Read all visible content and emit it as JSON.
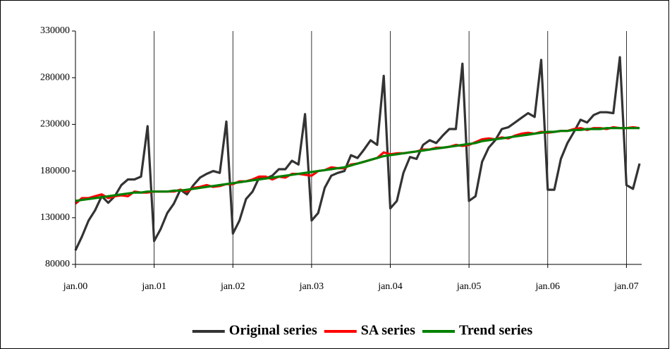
{
  "chart_data": {
    "type": "line",
    "categories": [
      "jan.00",
      null,
      null,
      null,
      null,
      null,
      null,
      null,
      null,
      null,
      null,
      null,
      "jan.01",
      null,
      null,
      null,
      null,
      null,
      null,
      null,
      null,
      null,
      null,
      null,
      "jan.02",
      null,
      null,
      null,
      null,
      null,
      null,
      null,
      null,
      null,
      null,
      null,
      "jan.03",
      null,
      null,
      null,
      null,
      null,
      null,
      null,
      null,
      null,
      null,
      null,
      "jan.04",
      null,
      null,
      null,
      null,
      null,
      null,
      null,
      null,
      null,
      null,
      null,
      "jan.05",
      null,
      null,
      null,
      null,
      null,
      null,
      null,
      null,
      null,
      null,
      null,
      "jan.06",
      null,
      null,
      null,
      null,
      null,
      null,
      null,
      null,
      null,
      null,
      null,
      "jan.07",
      null,
      null
    ],
    "series": [
      {
        "name": "Original series",
        "color": "#333333",
        "values": [
          95000,
          110000,
          127000,
          138000,
          153000,
          146000,
          153000,
          165000,
          171000,
          171000,
          174000,
          228000,
          105000,
          118000,
          135000,
          145000,
          160000,
          155000,
          165000,
          173000,
          177000,
          180000,
          178000,
          233000,
          113000,
          127000,
          150000,
          158000,
          173000,
          172000,
          175000,
          182000,
          182000,
          191000,
          187000,
          241000,
          127000,
          135000,
          162000,
          175000,
          178000,
          180000,
          197000,
          194000,
          203000,
          213000,
          208000,
          282000,
          140000,
          148000,
          178000,
          195000,
          193000,
          208000,
          213000,
          210000,
          218000,
          225000,
          225000,
          295000,
          148000,
          153000,
          190000,
          205000,
          213000,
          225000,
          227000,
          232000,
          237000,
          242000,
          238000,
          299000,
          160000,
          160000,
          193000,
          210000,
          222000,
          235000,
          232000,
          240000,
          243000,
          243000,
          242000,
          302000,
          165000,
          161000,
          188000
        ]
      },
      {
        "name": "SA series",
        "color": "#ff0000",
        "values": [
          145000,
          151000,
          151000,
          153000,
          155000,
          151000,
          153000,
          154000,
          153000,
          158000,
          157000,
          157000,
          158000,
          158000,
          158000,
          158000,
          160000,
          158000,
          162000,
          163000,
          165000,
          163000,
          164000,
          166000,
          166000,
          169000,
          169000,
          171000,
          174000,
          174000,
          171000,
          174000,
          173000,
          177000,
          177000,
          176000,
          175000,
          180000,
          181000,
          184000,
          183000,
          183000,
          187000,
          188000,
          190000,
          192000,
          194000,
          200000,
          198000,
          199000,
          199000,
          200000,
          201000,
          203000,
          203000,
          205000,
          205000,
          206000,
          208000,
          207000,
          208000,
          211000,
          214000,
          215000,
          214000,
          216000,
          215000,
          218000,
          220000,
          221000,
          220000,
          222000,
          221000,
          222000,
          223000,
          223000,
          225000,
          226000,
          224000,
          226000,
          226000,
          225000,
          227000,
          226000,
          226000,
          227000,
          226000
        ]
      },
      {
        "name": "Trend series",
        "color": "#008000",
        "values": [
          148000,
          149000,
          150000,
          151000,
          152000,
          153000,
          154000,
          155000,
          156000,
          157000,
          157000,
          158000,
          158000,
          158000,
          158000,
          159000,
          159000,
          160000,
          161000,
          162000,
          163000,
          164000,
          165000,
          166000,
          167000,
          168000,
          169000,
          170000,
          171000,
          172000,
          173000,
          174000,
          175000,
          176000,
          177000,
          178000,
          179000,
          180000,
          181000,
          182000,
          183000,
          184000,
          186000,
          188000,
          190000,
          192000,
          194000,
          196000,
          197000,
          198000,
          199000,
          200000,
          201000,
          202000,
          203000,
          204000,
          205000,
          206000,
          207000,
          208000,
          209000,
          210000,
          212000,
          213000,
          214000,
          215000,
          216000,
          217000,
          218000,
          219000,
          220000,
          221000,
          222000,
          222000,
          223000,
          223000,
          224000,
          224000,
          225000,
          225000,
          225000,
          226000,
          226000,
          226000,
          226000,
          226000,
          226000
        ]
      }
    ],
    "ylim": [
      80000,
      330000
    ],
    "yticks": [
      80000,
      130000,
      180000,
      230000,
      280000,
      330000
    ],
    "grid": true,
    "legend": "bottom"
  }
}
